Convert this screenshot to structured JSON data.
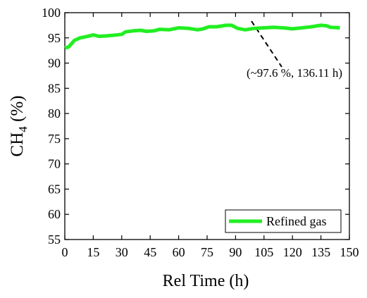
{
  "chart_data": {
    "type": "line",
    "x_label": "Rel Time (h)",
    "y_label": {
      "text": "CH",
      "subscript": "4",
      "suffix": " (%)"
    },
    "annotation": "(~97.6 %, 136.11 h)",
    "x": [
      0,
      2,
      5,
      8,
      12,
      15,
      18,
      22,
      25,
      30,
      32,
      36,
      40,
      43,
      47,
      50,
      55,
      60,
      65,
      70,
      73,
      76,
      80,
      85,
      88,
      91,
      95,
      100,
      105,
      110,
      115,
      120,
      125,
      130,
      135,
      138,
      140,
      145
    ],
    "series": [
      {
        "name": "Refined gas",
        "color": "#22ee22",
        "values": [
          93,
          93.2,
          94.5,
          95,
          95.3,
          95.6,
          95.3,
          95.4,
          95.5,
          95.7,
          96.2,
          96.4,
          96.5,
          96.3,
          96.4,
          96.7,
          96.6,
          97,
          96.9,
          96.6,
          96.8,
          97.2,
          97.2,
          97.5,
          97.5,
          96.9,
          96.6,
          96.9,
          97,
          97.1,
          97,
          96.8,
          97,
          97.2,
          97.5,
          97.4,
          97.1,
          97
        ]
      }
    ],
    "xlim": [
      0,
      150
    ],
    "xticks": [
      0,
      15,
      30,
      45,
      60,
      75,
      90,
      105,
      120,
      135,
      150
    ],
    "ylim": [
      55,
      100
    ],
    "yticks": [
      55,
      60,
      65,
      70,
      75,
      80,
      85,
      90,
      95,
      100
    ],
    "legend": "lower right"
  }
}
